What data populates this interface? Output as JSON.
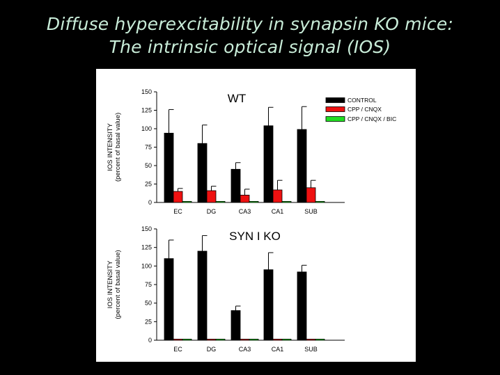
{
  "slide": {
    "title_line_1": "Diffuse hyperexcitability in  synapsin KO mice:",
    "title_line_2": "The intrinsic optical signal (IOS)"
  },
  "colors": {
    "background": "#000000",
    "title_text": "#c8ecd8",
    "panel": "#ffffff",
    "control": "#000000",
    "cpp_cnqx": "#ee1111",
    "cpp_cnqx_bic": "#22dd22"
  },
  "chart_data": [
    {
      "type": "bar",
      "title": "WT",
      "ylabel": "IOS INTENSITY\n(percent of basal value)",
      "xlabel": "",
      "ylim": [
        0,
        150
      ],
      "yticks": [
        "0",
        "25",
        "50",
        "75",
        "100",
        "125",
        "150"
      ],
      "categories": [
        "EC",
        "DG",
        "CA3",
        "CA1",
        "SUB"
      ],
      "series": [
        {
          "name": "CONTROL",
          "values": [
            94,
            80,
            45,
            104,
            99
          ],
          "error": [
            32,
            25,
            9,
            25,
            31
          ]
        },
        {
          "name": "CPP / CNQX",
          "values": [
            15,
            16,
            10,
            17,
            20
          ],
          "error": [
            4,
            6,
            8,
            13,
            10
          ]
        },
        {
          "name": "CPP / CNQX / BIC",
          "values": [
            1.5,
            1.5,
            1.5,
            1.5,
            1.5
          ],
          "error": [
            0,
            0,
            0,
            0,
            0
          ]
        }
      ],
      "legend_position": "top-right"
    },
    {
      "type": "bar",
      "title": "SYN I KO",
      "ylabel": "IOS INTENSITY\n(percent of basal value)",
      "xlabel": "",
      "ylim": [
        0,
        150
      ],
      "yticks": [
        "0",
        "25",
        "50",
        "75",
        "100",
        "125",
        "150"
      ],
      "categories": [
        "EC",
        "DG",
        "CA3",
        "CA1",
        "SUB"
      ],
      "series": [
        {
          "name": "CONTROL",
          "values": [
            110,
            120,
            40,
            95,
            92
          ],
          "error": [
            25,
            21,
            6,
            23,
            9
          ]
        },
        {
          "name": "CPP / CNQX",
          "values": [
            1.5,
            1.5,
            1.5,
            1.5,
            1.5
          ],
          "error": [
            0,
            0,
            0,
            0,
            0
          ]
        },
        {
          "name": "CPP / CNQX / BIC",
          "values": [
            1.5,
            1.5,
            1.5,
            1.5,
            1.5
          ],
          "error": [
            0,
            0,
            0,
            0,
            0
          ]
        }
      ]
    }
  ]
}
